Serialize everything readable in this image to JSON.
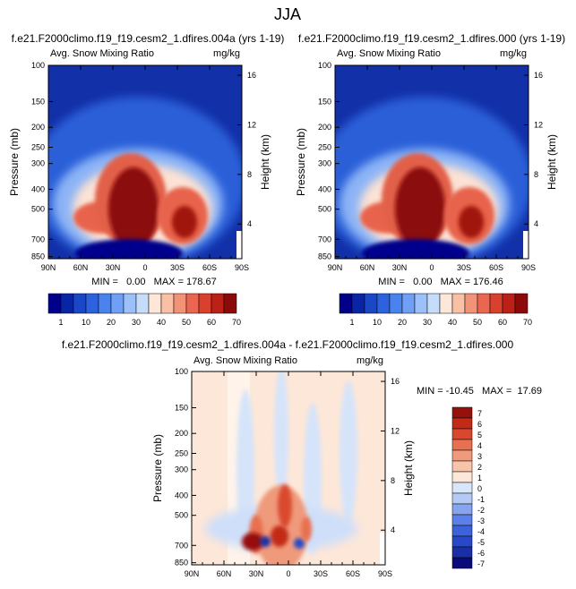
{
  "figure_title": "JJA",
  "colors": {
    "abs_palette": [
      "#00008c",
      "#0a24a8",
      "#1a46c8",
      "#2c62de",
      "#4a82ee",
      "#6fa0f5",
      "#9cc0fa",
      "#c6dcfb",
      "#fde7d8",
      "#f8c0a4",
      "#f29378",
      "#ea6650",
      "#d9402e",
      "#bb2117",
      "#8c0a0a"
    ],
    "diff_palette": [
      "#0a0a78",
      "#1a2ea8",
      "#2848c8",
      "#3c62dc",
      "#5c80e8",
      "#86a4f0",
      "#b4caf6",
      "#d8e6fb",
      "#fde7d8",
      "#f7c4a8",
      "#f09a7c",
      "#e87050",
      "#d9482e",
      "#c22a16",
      "#96100c"
    ]
  },
  "chart_data": [
    {
      "type": "heatmap",
      "title": "f.e21.F2000climo.f19_f19.cesm2_1.dfires.004a (yrs 1-19)",
      "subtitle_left": "Avg. Snow Mixing Ratio",
      "units": "mg/kg",
      "ylabel": "Pressure (mb)",
      "y2label": "Height (km)",
      "xticks": [
        "90N",
        "60N",
        "30N",
        "0",
        "30S",
        "60S",
        "90S"
      ],
      "yticks": [
        "100",
        "150",
        "200",
        "250",
        "300",
        "400",
        "500",
        "700",
        "850"
      ],
      "y2ticks": [
        "16",
        "12",
        "8",
        "4"
      ],
      "ylim": [
        1000,
        100
      ],
      "stats": "MIN =   0.00   MAX = 178.67",
      "min": 0.0,
      "max": 178.67,
      "colorbar_levels": [
        "1",
        "10",
        "20",
        "30",
        "40",
        "50",
        "60",
        "70"
      ]
    },
    {
      "type": "heatmap",
      "title": "f.e21.F2000climo.f19_f19.cesm2_1.dfires.000 (yrs 1-19)",
      "subtitle_left": "Avg. Snow Mixing Ratio",
      "units": "mg/kg",
      "ylabel": "Pressure (mb)",
      "y2label": "Height (km)",
      "xticks": [
        "90N",
        "60N",
        "30N",
        "0",
        "30S",
        "60S",
        "90S"
      ],
      "yticks": [
        "100",
        "150",
        "200",
        "250",
        "300",
        "400",
        "500",
        "700",
        "850"
      ],
      "y2ticks": [
        "16",
        "12",
        "8",
        "4"
      ],
      "ylim": [
        1000,
        100
      ],
      "stats": "MIN =   0.00   MAX = 176.46",
      "min": 0.0,
      "max": 176.46,
      "colorbar_levels": [
        "1",
        "10",
        "20",
        "30",
        "40",
        "50",
        "60",
        "70"
      ]
    },
    {
      "type": "heatmap",
      "title": "f.e21.F2000climo.f19_f19.cesm2_1.dfires.004a - f.e21.F2000climo.f19_f19.cesm2_1.dfires.000",
      "subtitle_left": "Avg. Snow Mixing Ratio",
      "units": "mg/kg",
      "ylabel": "Pressure (mb)",
      "y2label": "Height (km)",
      "xticks": [
        "90N",
        "60N",
        "30N",
        "0",
        "30S",
        "60S",
        "90S"
      ],
      "yticks": [
        "100",
        "150",
        "200",
        "250",
        "300",
        "400",
        "500",
        "700",
        "850"
      ],
      "y2ticks": [
        "16",
        "12",
        "8",
        "4"
      ],
      "ylim": [
        1000,
        100
      ],
      "stats": "MIN = -10.45   MAX =  17.69",
      "min": -10.45,
      "max": 17.69,
      "colorbar_levels": [
        "7",
        "6",
        "5",
        "4",
        "3",
        "2",
        "1",
        "0",
        "-1",
        "-2",
        "-3",
        "-4",
        "-5",
        "-6",
        "-7"
      ]
    }
  ]
}
